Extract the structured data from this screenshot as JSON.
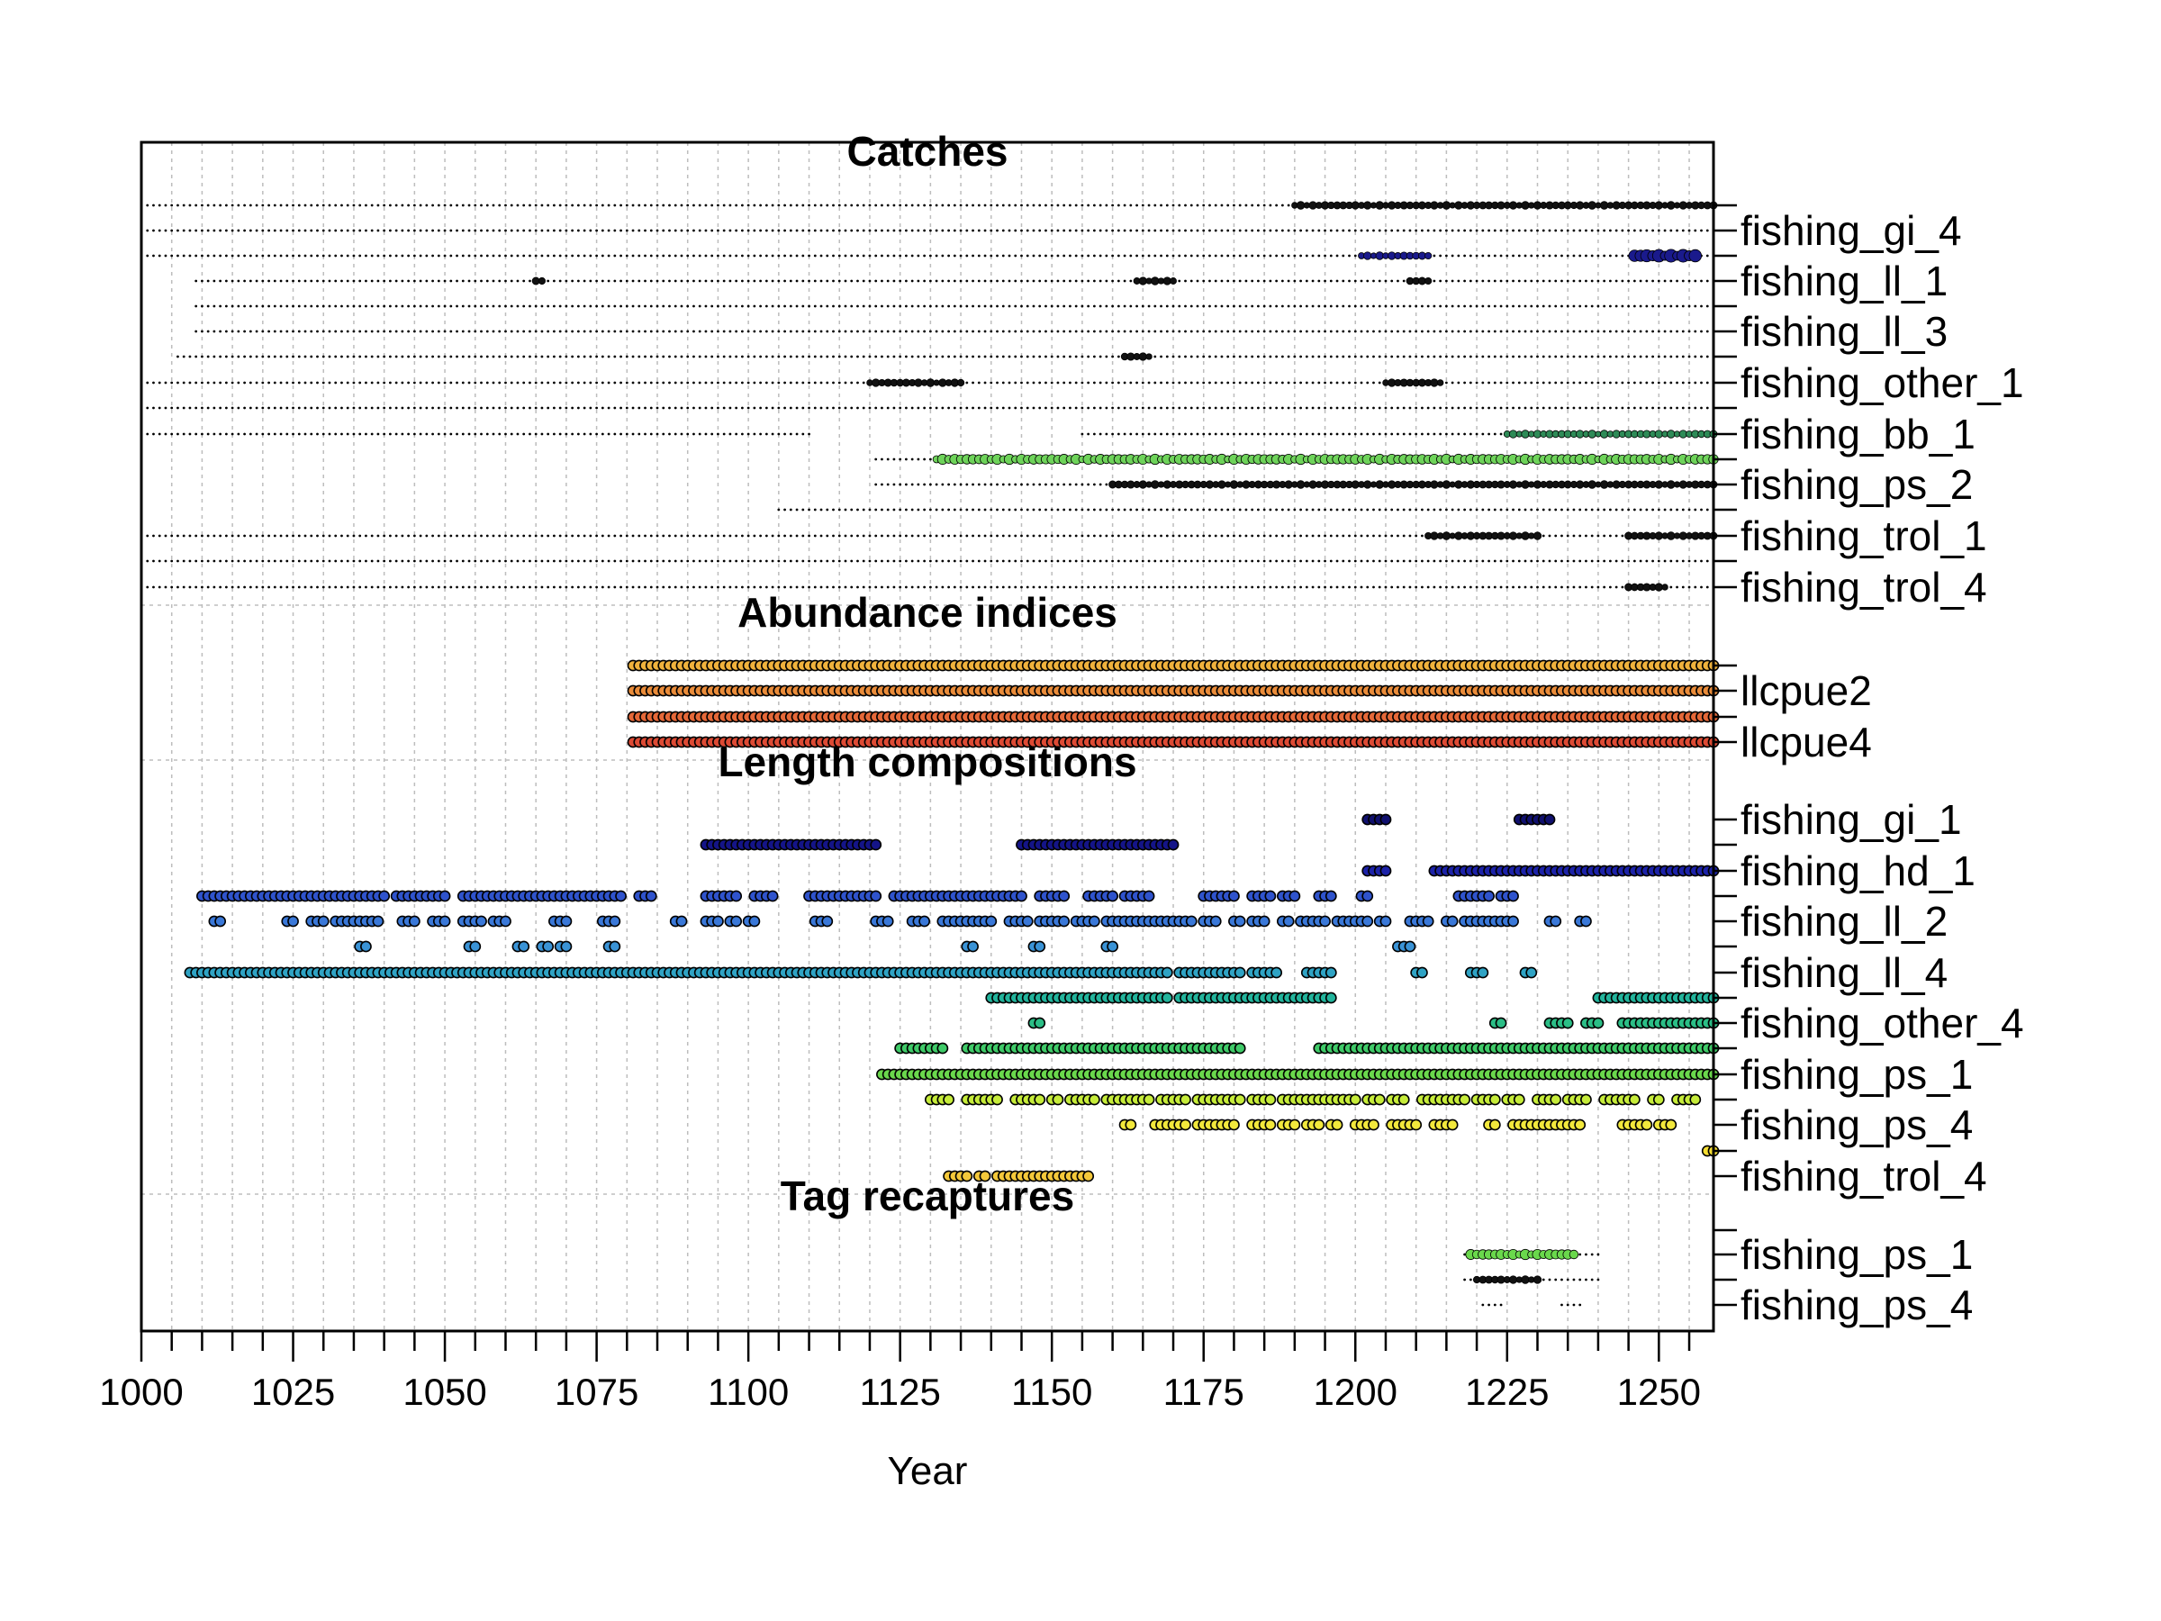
{
  "chart_data": {
    "type": "scatter",
    "xlabel": "Year",
    "xlim": [
      1000,
      1259
    ],
    "x_ticks": [
      1000,
      1025,
      1050,
      1075,
      1100,
      1125,
      1150,
      1175,
      1200,
      1225,
      1250
    ],
    "minor_tick_step": 5,
    "grid": true,
    "sections": [
      {
        "title": "Catches",
        "marker": "dot",
        "rows": [
          {
            "fleet": "",
            "color": "#111111",
            "runs": [
              [
                1000,
                1259
              ]
            ],
            "big": [
              [
                1190,
                1259,
                2
              ]
            ]
          },
          {
            "fleet": "fishing_gi_4",
            "color": "#111111",
            "runs": [
              [
                1000,
                1259
              ]
            ],
            "big": []
          },
          {
            "fleet": "",
            "color": "#1a1a8c",
            "runs": [
              [
                1000,
                1259
              ]
            ],
            "big": [
              [
                1201,
                1212,
                2
              ],
              [
                1246,
                1256,
                4
              ]
            ]
          },
          {
            "fleet": "fishing_ll_1",
            "color": "#111111",
            "runs": [
              [
                1009,
                1259
              ]
            ],
            "big": [
              [
                1065,
                1066,
                2
              ],
              [
                1164,
                1170,
                2
              ],
              [
                1209,
                1212,
                2
              ]
            ]
          },
          {
            "fleet": "",
            "color": "#111111",
            "runs": [
              [
                1009,
                1259
              ]
            ],
            "big": []
          },
          {
            "fleet": "fishing_ll_3",
            "color": "#111111",
            "runs": [
              [
                1009,
                1259
              ]
            ],
            "big": []
          },
          {
            "fleet": "",
            "color": "#111111",
            "runs": [
              [
                1006,
                1259
              ]
            ],
            "big": [
              [
                1162,
                1166,
                2
              ]
            ]
          },
          {
            "fleet": "fishing_other_1",
            "color": "#111111",
            "runs": [
              [
                1000,
                1259
              ]
            ],
            "big": [
              [
                1120,
                1135,
                2
              ],
              [
                1205,
                1214,
                2
              ]
            ]
          },
          {
            "fleet": "",
            "color": "#111111",
            "runs": [
              [
                1000,
                1259
              ]
            ],
            "big": []
          },
          {
            "fleet": "fishing_bb_1",
            "color": "#2e8b57",
            "runs": [
              [
                1000,
                1110
              ],
              [
                1155,
                1259
              ]
            ],
            "big": [
              [
                1225,
                1259,
                2
              ]
            ]
          },
          {
            "fleet": "",
            "color": "#6ed35a",
            "runs": [
              [
                1121,
                1259
              ]
            ],
            "big": [
              [
                1131,
                1259,
                3
              ]
            ]
          },
          {
            "fleet": "fishing_ps_2",
            "color": "#111111",
            "runs": [
              [
                1121,
                1259
              ]
            ],
            "big": [
              [
                1160,
                1259,
                2
              ]
            ]
          },
          {
            "fleet": "",
            "color": "#111111",
            "runs": [
              [
                1105,
                1259
              ]
            ],
            "big": []
          },
          {
            "fleet": "fishing_trol_1",
            "color": "#111111",
            "runs": [
              [
                1000,
                1259
              ]
            ],
            "big": [
              [
                1212,
                1230,
                2
              ],
              [
                1245,
                1259,
                2
              ]
            ]
          },
          {
            "fleet": "",
            "color": "#111111",
            "runs": [
              [
                1000,
                1259
              ]
            ],
            "big": []
          },
          {
            "fleet": "fishing_trol_4",
            "color": "#111111",
            "runs": [
              [
                1000,
                1259
              ]
            ],
            "big": [
              [
                1245,
                1251,
                2
              ]
            ]
          }
        ]
      },
      {
        "title": "Abundance indices",
        "marker": "circle",
        "rows": [
          {
            "fleet": "",
            "color": "#f0b23c",
            "runs": [
              [
                1081,
                1259
              ]
            ]
          },
          {
            "fleet": "llcpue2",
            "color": "#ea8c3a",
            "runs": [
              [
                1081,
                1259
              ]
            ]
          },
          {
            "fleet": "",
            "color": "#e56838",
            "runs": [
              [
                1081,
                1259
              ]
            ]
          },
          {
            "fleet": "llcpue4",
            "color": "#dd4a34",
            "runs": [
              [
                1081,
                1259
              ]
            ]
          }
        ]
      },
      {
        "title": "Length compositions",
        "marker": "circle",
        "rows": [
          {
            "fleet": "fishing_gi_1",
            "color": "#10106e",
            "runs": [
              [
                1202,
                1205
              ],
              [
                1227,
                1232
              ]
            ]
          },
          {
            "fleet": "",
            "color": "#141488",
            "runs": [
              [
                1093,
                1121
              ],
              [
                1145,
                1170
              ]
            ]
          },
          {
            "fleet": "fishing_hd_1",
            "color": "#1c22a8",
            "runs": [
              [
                1202,
                1205
              ],
              [
                1213,
                1259
              ]
            ]
          },
          {
            "fleet": "",
            "color": "#2f53cc",
            "runs": [
              [
                1010,
                1040
              ],
              [
                1042,
                1050
              ],
              [
                1053,
                1079
              ],
              [
                1082,
                1084
              ],
              [
                1093,
                1098
              ],
              [
                1101,
                1104
              ],
              [
                1110,
                1121
              ],
              [
                1124,
                1145
              ],
              [
                1148,
                1152
              ],
              [
                1156,
                1160
              ],
              [
                1162,
                1166
              ],
              [
                1175,
                1180
              ],
              [
                1183,
                1186
              ],
              [
                1188,
                1190
              ],
              [
                1194,
                1196
              ],
              [
                1201,
                1202
              ],
              [
                1217,
                1222
              ],
              [
                1224,
                1226
              ]
            ]
          },
          {
            "fleet": "fishing_ll_2",
            "color": "#3a78d8",
            "runs": [
              [
                1012,
                1013
              ],
              [
                1024,
                1025
              ],
              [
                1028,
                1030
              ],
              [
                1032,
                1035
              ],
              [
                1036,
                1039
              ],
              [
                1043,
                1045
              ],
              [
                1048,
                1050
              ],
              [
                1053,
                1056
              ],
              [
                1058,
                1060
              ],
              [
                1068,
                1070
              ],
              [
                1076,
                1078
              ],
              [
                1088,
                1089
              ],
              [
                1093,
                1095
              ],
              [
                1097,
                1098
              ],
              [
                1100,
                1101
              ],
              [
                1111,
                1113
              ],
              [
                1121,
                1123
              ],
              [
                1127,
                1129
              ],
              [
                1132,
                1140
              ],
              [
                1143,
                1146
              ],
              [
                1148,
                1152
              ],
              [
                1154,
                1157
              ],
              [
                1159,
                1173
              ],
              [
                1175,
                1177
              ],
              [
                1180,
                1181
              ],
              [
                1183,
                1185
              ],
              [
                1188,
                1189
              ],
              [
                1191,
                1195
              ],
              [
                1197,
                1202
              ],
              [
                1204,
                1205
              ],
              [
                1209,
                1212
              ],
              [
                1215,
                1216
              ],
              [
                1218,
                1226
              ],
              [
                1232,
                1233
              ],
              [
                1237,
                1238
              ]
            ]
          },
          {
            "fleet": "",
            "color": "#3a93d6",
            "runs": [
              [
                1036,
                1037
              ],
              [
                1054,
                1055
              ],
              [
                1062,
                1063
              ],
              [
                1066,
                1067
              ],
              [
                1069,
                1070
              ],
              [
                1077,
                1078
              ],
              [
                1136,
                1137
              ],
              [
                1147,
                1148
              ],
              [
                1159,
                1160
              ],
              [
                1207,
                1209
              ]
            ]
          },
          {
            "fleet": "fishing_ll_4",
            "color": "#2fa3c4",
            "runs": [
              [
                1008,
                1120
              ],
              [
                1121,
                1169
              ],
              [
                1171,
                1181
              ],
              [
                1183,
                1187
              ],
              [
                1192,
                1196
              ],
              [
                1210,
                1211
              ],
              [
                1219,
                1221
              ],
              [
                1228,
                1229
              ]
            ]
          },
          {
            "fleet": "",
            "color": "#22b49c",
            "runs": [
              [
                1140,
                1169
              ],
              [
                1171,
                1196
              ],
              [
                1240,
                1259
              ]
            ]
          },
          {
            "fleet": "fishing_other_4",
            "color": "#2bbe86",
            "runs": [
              [
                1147,
                1148
              ],
              [
                1223,
                1224
              ],
              [
                1232,
                1235
              ],
              [
                1238,
                1240
              ],
              [
                1244,
                1259
              ]
            ]
          },
          {
            "fleet": "",
            "color": "#3fca68",
            "runs": [
              [
                1125,
                1132
              ],
              [
                1136,
                1181
              ],
              [
                1194,
                1259
              ]
            ]
          },
          {
            "fleet": "fishing_ps_1",
            "color": "#6ad84c",
            "runs": [
              [
                1122,
                1259
              ]
            ]
          },
          {
            "fleet": "",
            "color": "#c6ec3a",
            "runs": [
              [
                1130,
                1133
              ],
              [
                1136,
                1141
              ],
              [
                1144,
                1148
              ],
              [
                1150,
                1151
              ],
              [
                1153,
                1157
              ],
              [
                1159,
                1166
              ],
              [
                1168,
                1172
              ],
              [
                1174,
                1181
              ],
              [
                1183,
                1186
              ],
              [
                1188,
                1200
              ],
              [
                1202,
                1204
              ],
              [
                1206,
                1208
              ],
              [
                1211,
                1218
              ],
              [
                1220,
                1223
              ],
              [
                1225,
                1227
              ],
              [
                1230,
                1233
              ],
              [
                1235,
                1238
              ],
              [
                1241,
                1246
              ],
              [
                1249,
                1250
              ],
              [
                1253,
                1256
              ]
            ]
          },
          {
            "fleet": "fishing_ps_4",
            "color": "#f2e83c",
            "runs": [
              [
                1162,
                1163
              ],
              [
                1167,
                1172
              ],
              [
                1174,
                1180
              ],
              [
                1183,
                1186
              ],
              [
                1188,
                1190
              ],
              [
                1192,
                1194
              ],
              [
                1196,
                1197
              ],
              [
                1200,
                1203
              ],
              [
                1206,
                1210
              ],
              [
                1213,
                1216
              ],
              [
                1222,
                1223
              ],
              [
                1226,
                1237
              ],
              [
                1244,
                1248
              ],
              [
                1250,
                1252
              ]
            ]
          },
          {
            "fleet": "",
            "color": "#f6de32",
            "runs": [
              [
                1258,
                1259
              ]
            ]
          },
          {
            "fleet": "fishing_trol_4",
            "color": "#f4c83a",
            "runs": [
              [
                1133,
                1136
              ],
              [
                1138,
                1139
              ],
              [
                1141,
                1147
              ],
              [
                1148,
                1150
              ],
              [
                1151,
                1156
              ]
            ]
          }
        ]
      },
      {
        "title": "Tag recaptures",
        "marker": "dot",
        "rows": [
          {
            "fleet": "",
            "color": "#111111",
            "runs": []
          },
          {
            "fleet": "fishing_ps_1",
            "color": "#6ad84c",
            "runs": [
              [
                1218,
                1240
              ]
            ],
            "big": [
              [
                1219,
                1236,
                3
              ]
            ]
          },
          {
            "fleet": "",
            "color": "#111111",
            "runs": [
              [
                1218,
                1240
              ]
            ],
            "big": [
              [
                1220,
                1230,
                2
              ]
            ]
          },
          {
            "fleet": "fishing_ps_4",
            "color": "#111111",
            "runs": [
              [
                1221,
                1224
              ],
              [
                1234,
                1237
              ]
            ],
            "big": []
          }
        ]
      }
    ]
  }
}
